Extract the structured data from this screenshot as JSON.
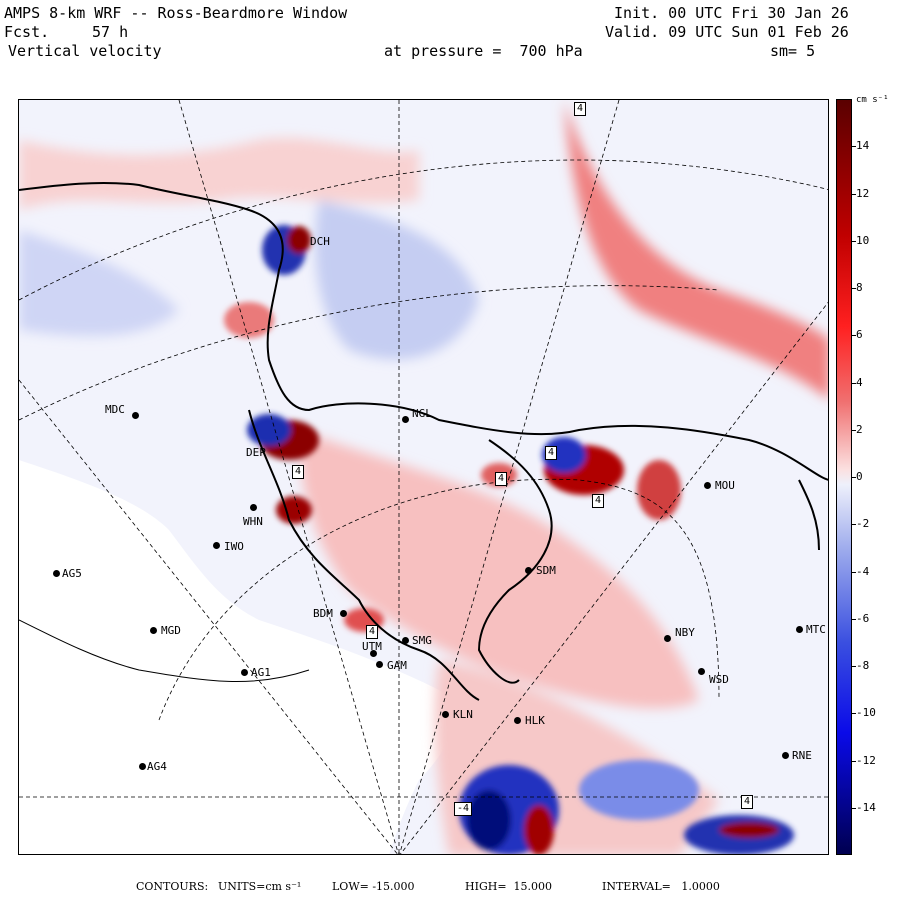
{
  "header": {
    "title": "AMPS 8-km WRF -- Ross-Beardmore Window",
    "init": "Init. 00 UTC Fri 30 Jan 26",
    "fcst_label": "Fcst.",
    "fcst_value": "57 h",
    "valid": "Valid. 09 UTC Sun 01 Feb 26",
    "field": "Vertical velocity",
    "level": "at pressure =  700 hPa",
    "smoothing": "sm= 5"
  },
  "colorbar": {
    "units": "cm s⁻¹",
    "ticks": [
      "14",
      "12",
      "10",
      "8",
      "6",
      "4",
      "2",
      "0",
      "-2",
      "-4",
      "-6",
      "-8",
      "-10",
      "-12",
      "-14"
    ],
    "range": [
      -16,
      16
    ]
  },
  "footer": {
    "contours_label": "CONTOURS:",
    "units": "UNITS=cm s⁻¹",
    "low": "LOW= -15.000",
    "high": "HIGH=  15.000",
    "interval": "INTERVAL=   1.0000"
  },
  "stations": [
    {
      "id": "NGL"
    },
    {
      "id": "MDC"
    },
    {
      "id": "IWO"
    },
    {
      "id": "AG5"
    },
    {
      "id": "WHN"
    },
    {
      "id": "BDM"
    },
    {
      "id": "MGD"
    },
    {
      "id": "AG1"
    },
    {
      "id": "UTM"
    },
    {
      "id": "GAM"
    },
    {
      "id": "SMG"
    },
    {
      "id": "KLN"
    },
    {
      "id": "HLK"
    },
    {
      "id": "SDM"
    },
    {
      "id": "NBY"
    },
    {
      "id": "WSD"
    },
    {
      "id": "MTC"
    },
    {
      "id": "MOU"
    },
    {
      "id": "AG4"
    },
    {
      "id": "RNE"
    },
    {
      "id": "DCH"
    },
    {
      "id": "DEP"
    }
  ],
  "contour_labels": [
    "4",
    "4",
    "4",
    "4",
    "4",
    "-4",
    "4",
    "4"
  ],
  "colors": {
    "pos_strong": "#8b0000",
    "pos": "#e05050",
    "pos_light": "#f7c9c9",
    "neg_strong": "#00008b",
    "neg": "#4a5ee0",
    "neg_light": "#cfd5f5",
    "zero": "#f4f4fb"
  }
}
